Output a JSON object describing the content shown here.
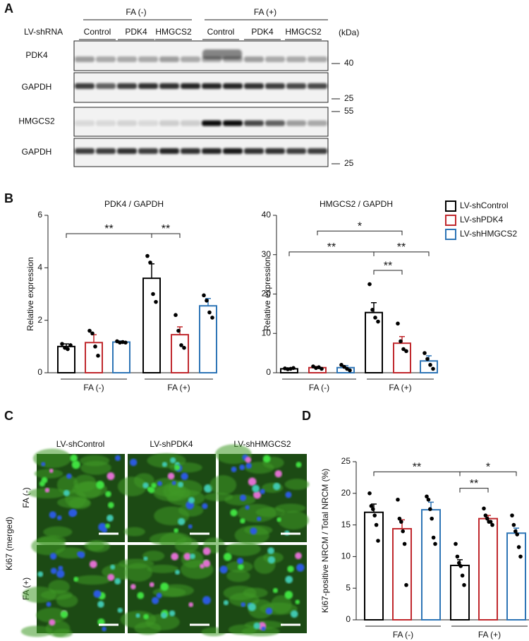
{
  "panel_labels": [
    "A",
    "B",
    "C",
    "D"
  ],
  "blot": {
    "title": "LV-shRNA",
    "groups": [
      "FA (-)",
      "FA (+)"
    ],
    "lanes": [
      "Control",
      "PDK4",
      "HMGCS2",
      "Control",
      "PDK4",
      "HMGCS2"
    ],
    "unit": "(kDa)",
    "rows": [
      "PDK4",
      "GAPDH",
      "HMGCS2",
      "GAPDH"
    ],
    "markers": [
      "40",
      "25",
      "55",
      "25"
    ]
  },
  "micrographs": {
    "columns": [
      "LV-shControl",
      "LV-shPDK4",
      "LV-shHMGCS2"
    ],
    "rows": [
      "FA (-)",
      "FA (+)"
    ],
    "y_label": "Ki67 (merged)"
  },
  "chart_data": [
    {
      "type": "bar",
      "title": "PDK4 / GAPDH",
      "y_label": "Relative expression",
      "categories": [
        "FA (-)",
        "FA (+)"
      ],
      "ylim": [
        0,
        6
      ],
      "yticks": [
        0,
        2,
        4,
        6
      ],
      "significance": [
        "**",
        "**"
      ],
      "series": [
        {
          "color": "#000000",
          "values": [
            1.0,
            3.6
          ],
          "errors": [
            0.1,
            0.55
          ],
          "points": [
            [
              1.1,
              0.95,
              0.9,
              1.05
            ],
            [
              4.45,
              4.2,
              3.0,
              2.7
            ]
          ]
        },
        {
          "color": "#c0282d",
          "values": [
            1.15,
            1.45
          ],
          "errors": [
            0.3,
            0.3
          ],
          "points": [
            [
              1.6,
              1.5,
              1.0,
              0.65
            ],
            [
              2.2,
              1.6,
              1.05,
              0.95
            ]
          ]
        },
        {
          "color": "#2e75b6",
          "values": [
            1.17,
            2.55
          ],
          "errors": [
            0.04,
            0.28
          ],
          "points": [
            [
              1.2,
              1.15,
              1.17,
              1.15
            ],
            [
              2.95,
              2.75,
              2.3,
              2.1
            ]
          ]
        }
      ]
    },
    {
      "type": "bar",
      "title": "HMGCS2 / GAPDH",
      "y_label": "Relative expression",
      "categories": [
        "FA (-)",
        "FA (+)"
      ],
      "ylim": [
        0,
        40
      ],
      "yticks": [
        0,
        10,
        20,
        30,
        40
      ],
      "significance": [
        "*",
        "**",
        "**",
        "**"
      ],
      "series": [
        {
          "name": "LV-shControl",
          "color": "#000000",
          "values": [
            1.0,
            15.3
          ],
          "errors": [
            0.2,
            2.5
          ],
          "points": [
            [
              1.1,
              0.9,
              1.0,
              1.2
            ],
            [
              22.5,
              16,
              14,
              13
            ]
          ]
        },
        {
          "name": "LV-shPDK4",
          "color": "#c0282d",
          "values": [
            1.3,
            7.5
          ],
          "errors": [
            0.3,
            1.7
          ],
          "points": [
            [
              1.6,
              1.2,
              1.4,
              1.0
            ],
            [
              12.5,
              8,
              6,
              5.5
            ]
          ]
        },
        {
          "name": "LV-shHMGCS2",
          "color": "#2e75b6",
          "values": [
            1.3,
            3.0
          ],
          "errors": [
            0.5,
            1.3
          ],
          "points": [
            [
              2.0,
              1.5,
              1.0,
              0.6
            ],
            [
              5,
              3.5,
              2,
              1
            ]
          ]
        }
      ]
    },
    {
      "type": "bar",
      "y_label": "Ki67-positive NRCM / Total NRCM (%)",
      "categories": [
        "FA (-)",
        "FA (+)"
      ],
      "ylim": [
        0,
        25
      ],
      "yticks": [
        0,
        5,
        10,
        15,
        20,
        25
      ],
      "significance": [
        "**",
        "*",
        "**"
      ],
      "series": [
        {
          "color": "#000000",
          "values": [
            17.0,
            8.6
          ],
          "errors": [
            1.3,
            0.9
          ],
          "points": [
            [
              20,
              18,
              17.5,
              16.5,
              15,
              12.5
            ],
            [
              12,
              10,
              9,
              8.5,
              7,
              5.5
            ]
          ]
        },
        {
          "color": "#c0282d",
          "values": [
            14.4,
            16.0
          ],
          "errors": [
            1.4,
            0.5
          ],
          "points": [
            [
              19,
              16,
              15.5,
              14,
              12,
              5.5
            ],
            [
              17.6,
              16.5,
              16,
              15.5,
              15.5,
              15
            ]
          ]
        },
        {
          "color": "#2e75b6",
          "values": [
            17.4,
            13.7
          ],
          "errors": [
            1.2,
            0.8
          ],
          "points": [
            [
              19.5,
              19,
              17.5,
              16,
              13,
              12
            ],
            [
              16.5,
              15,
              14,
              13.5,
              11.5,
              10
            ]
          ]
        }
      ]
    }
  ]
}
